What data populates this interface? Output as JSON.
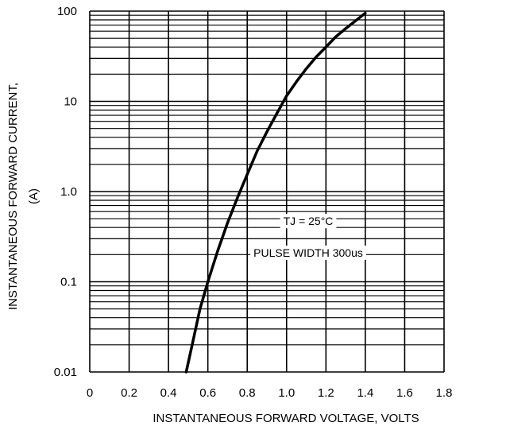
{
  "chart_data": {
    "type": "line",
    "title": "",
    "xlabel": "INSTANTANEOUS FORWARD VOLTAGE, VOLTS",
    "ylabel_line1": "INSTANTANEOUS FORWARD CURRENT,",
    "ylabel_line2": "(A)",
    "xlim": [
      0,
      1.8
    ],
    "ylim": [
      0.01,
      100
    ],
    "yscale": "log",
    "grid": true,
    "x_ticks": [
      0,
      0.2,
      0.4,
      0.6,
      0.8,
      1.0,
      1.2,
      1.4,
      1.6,
      1.8
    ],
    "x_tick_labels": [
      "0",
      "0.2",
      "0.4",
      "0.6",
      "0.8",
      "1.0",
      "1.2",
      "1.4",
      "1.6",
      "1.8"
    ],
    "y_ticks": [
      0.01,
      0.1,
      1.0,
      10,
      100
    ],
    "y_tick_labels": [
      "0.01",
      "0.1",
      "1.0",
      "10",
      "100"
    ],
    "series": [
      {
        "x": [
          0.49,
          0.53,
          0.56,
          0.6,
          0.65,
          0.7,
          0.75,
          0.8,
          0.85,
          0.9,
          0.95,
          1.0,
          1.05,
          1.1,
          1.15,
          1.2,
          1.25,
          1.3,
          1.35,
          1.4
        ],
        "y": [
          0.01,
          0.025,
          0.05,
          0.1,
          0.22,
          0.45,
          0.85,
          1.55,
          2.8,
          4.6,
          7.3,
          11.5,
          16.5,
          23,
          31,
          40,
          52,
          64,
          78,
          95
        ]
      }
    ],
    "annotations": [
      {
        "text": "TJ = 25°C",
        "x": 1.11,
        "y": 0.47
      },
      {
        "text": "PULSE WIDTH 300us",
        "x": 1.11,
        "y": 0.21
      }
    ]
  }
}
